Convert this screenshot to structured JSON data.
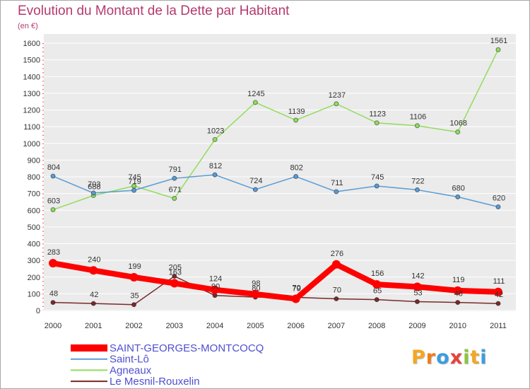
{
  "chart_data": {
    "type": "line",
    "title": "Evolution du Montant de la Dette par Habitant",
    "subtitle": "(en €)",
    "x": [
      2000,
      2001,
      2002,
      2003,
      2004,
      2005,
      2006,
      2007,
      2008,
      2009,
      2010,
      2011
    ],
    "ylim": [
      0,
      1600
    ],
    "yticks": [
      0,
      100,
      200,
      300,
      400,
      500,
      600,
      700,
      800,
      900,
      1000,
      1100,
      1200,
      1300,
      1400,
      1500,
      1600
    ],
    "grid": true,
    "data_labels": true,
    "legend_position": "bottom-left",
    "series": [
      {
        "name": "SAINT-GEORGES-MONTCOCQ",
        "color": "#ff0000",
        "values": [
          283,
          240,
          199,
          163,
          124,
          98,
          70,
          276,
          156,
          142,
          119,
          111
        ]
      },
      {
        "name": "Saint-Lô",
        "color": "#5b9bd5",
        "values": [
          804,
          703,
          719,
          791,
          812,
          724,
          802,
          711,
          745,
          722,
          680,
          620
        ]
      },
      {
        "name": "Agneaux",
        "color": "#90dd5c",
        "values": [
          603,
          688,
          745,
          671,
          1023,
          1245,
          1139,
          1237,
          1123,
          1106,
          1068,
          1561
        ]
      },
      {
        "name": "Le Mesnil-Rouxelin",
        "color": "#7a2a2a",
        "values": [
          48,
          42,
          35,
          205,
          90,
          80,
          79,
          70,
          65,
          53,
          48,
          42
        ]
      }
    ]
  },
  "colors": {
    "title": "#b43a6e",
    "legend_text": "#4f4fd0",
    "plot_bg": "#ebebeb",
    "gridline": "#ffffff",
    "axis_accent": "#ff0000"
  },
  "logo": {
    "text": "Proxiti",
    "letter_colors": [
      "#f5a623",
      "#f07d1a",
      "#3b9de0",
      "#e8413a",
      "#8cc63f",
      "#f5a623",
      "#3b9de0"
    ]
  }
}
